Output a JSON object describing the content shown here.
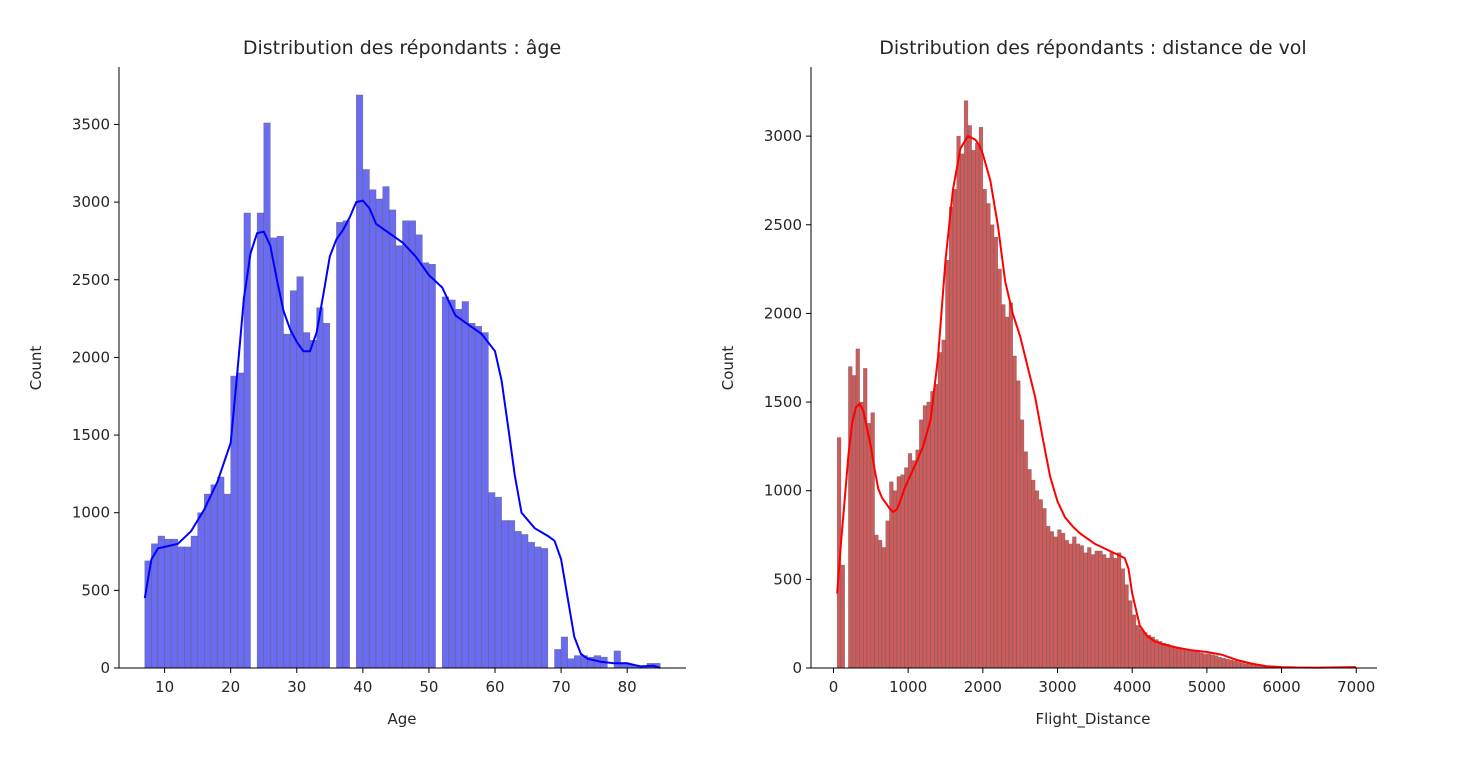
{
  "chart_data": [
    {
      "type": "bar",
      "title": "Distribution des répondants : âge",
      "xlabel": "Age",
      "ylabel": "Count",
      "xlim": [
        3.1,
        88.9
      ],
      "ylim": [
        0,
        3870
      ],
      "xticks": [
        "10",
        "20",
        "30",
        "40",
        "50",
        "60",
        "70",
        "80"
      ],
      "yticks": [
        "0",
        "500",
        "1000",
        "1500",
        "2000",
        "2500",
        "3000",
        "3500"
      ],
      "bar_color": "#6b6bef",
      "kde_color": "#0000ff",
      "grid": false,
      "bins": {
        "start": 7,
        "width": 1,
        "counts": [
          690,
          800,
          850,
          830,
          830,
          780,
          780,
          850,
          1000,
          1120,
          1180,
          1230,
          1120,
          1880,
          1900,
          2930,
          0,
          2930,
          3510,
          2770,
          2780,
          2150,
          2430,
          2520,
          2160,
          2110,
          2320,
          2220,
          0,
          2870,
          2880,
          0,
          3690,
          3210,
          3080,
          3020,
          3100,
          2950,
          2720,
          2880,
          2880,
          2790,
          2610,
          2600,
          0,
          2390,
          2370,
          2310,
          2360,
          2220,
          2200,
          2160,
          1130,
          1100,
          950,
          950,
          880,
          860,
          810,
          780,
          770,
          0,
          120,
          200,
          60,
          80,
          80,
          70,
          80,
          70,
          0,
          110,
          35,
          25,
          10,
          8,
          30,
          30
        ]
      },
      "kde": {
        "x": [
          7,
          8,
          9,
          10,
          12,
          14,
          16,
          18,
          20,
          21,
          22,
          23,
          24,
          25,
          26,
          27,
          28,
          29,
          30,
          31,
          32,
          33,
          34,
          35,
          36,
          37,
          38,
          39,
          40,
          41,
          42,
          44,
          46,
          48,
          50,
          52,
          54,
          56,
          58,
          60,
          61,
          62,
          63,
          64,
          66,
          68,
          69,
          70,
          71,
          72,
          73,
          74,
          76,
          78,
          80,
          82,
          84,
          85
        ],
        "y": [
          450,
          700,
          770,
          780,
          800,
          880,
          1020,
          1200,
          1450,
          1900,
          2380,
          2670,
          2800,
          2810,
          2720,
          2500,
          2300,
          2180,
          2100,
          2040,
          2040,
          2160,
          2400,
          2650,
          2760,
          2820,
          2900,
          3000,
          3010,
          2960,
          2860,
          2800,
          2740,
          2650,
          2530,
          2450,
          2270,
          2210,
          2150,
          2040,
          1850,
          1550,
          1240,
          1000,
          900,
          850,
          820,
          700,
          450,
          200,
          90,
          60,
          40,
          30,
          30,
          10,
          15,
          0
        ]
      }
    },
    {
      "type": "bar",
      "title": "Distribution des répondants : distance de vol",
      "xlabel": "Flight_Distance",
      "ylabel": "Count",
      "xlim": [
        -301,
        7278
      ],
      "ylim": [
        0,
        3390
      ],
      "xticks": [
        "0",
        "1000",
        "2000",
        "3000",
        "4000",
        "5000",
        "6000",
        "7000"
      ],
      "yticks": [
        "0",
        "500",
        "1000",
        "1500",
        "2000",
        "2500",
        "3000"
      ],
      "bar_color": "#cd5c5c",
      "kde_color": "#ff0000",
      "grid": false,
      "bins": {
        "start": 50,
        "width": 50,
        "counts": [
          1300,
          580,
          0,
          1700,
          1650,
          1800,
          1500,
          1690,
          1380,
          1440,
          750,
          720,
          680,
          830,
          1050,
          1000,
          1080,
          1090,
          1130,
          1210,
          1170,
          1230,
          1400,
          1480,
          1500,
          1560,
          1600,
          1780,
          1850,
          2300,
          2600,
          2700,
          3000,
          2900,
          3200,
          3060,
          2920,
          2960,
          3050,
          2700,
          2620,
          2500,
          2430,
          2250,
          2050,
          1980,
          2060,
          1760,
          1620,
          1400,
          1220,
          1120,
          1060,
          1000,
          950,
          900,
          800,
          770,
          740,
          780,
          760,
          720,
          700,
          740,
          700,
          690,
          650,
          680,
          640,
          660,
          660,
          640,
          620,
          650,
          620,
          650,
          560,
          470,
          380,
          300,
          240,
          220,
          200,
          185,
          175,
          160,
          150,
          140,
          135,
          125,
          120,
          115,
          110,
          105,
          100,
          95,
          90,
          85,
          80,
          80,
          75,
          70,
          60,
          55,
          50,
          45,
          40,
          35,
          30,
          25,
          22,
          20,
          18,
          15,
          12,
          10,
          10,
          8,
          8,
          7,
          6,
          6,
          5,
          5,
          5,
          5,
          5,
          4,
          4,
          4,
          4,
          3,
          3,
          3,
          3,
          2
        ]
      },
      "kde": {
        "x": [
          50,
          100,
          150,
          200,
          250,
          300,
          350,
          400,
          450,
          500,
          550,
          600,
          650,
          700,
          750,
          800,
          850,
          900,
          950,
          1000,
          1100,
          1200,
          1300,
          1400,
          1500,
          1600,
          1700,
          1800,
          1900,
          1950,
          2000,
          2100,
          2200,
          2300,
          2400,
          2500,
          2600,
          2700,
          2800,
          2900,
          3000,
          3100,
          3200,
          3300,
          3400,
          3500,
          3600,
          3700,
          3800,
          3900,
          3950,
          4000,
          4100,
          4200,
          4300,
          4400,
          4600,
          4800,
          5000,
          5200,
          5400,
          5600,
          5800,
          6000,
          6200,
          6500,
          7000
        ],
        "y": [
          420,
          700,
          950,
          1200,
          1380,
          1470,
          1490,
          1450,
          1350,
          1250,
          1120,
          1010,
          960,
          930,
          900,
          880,
          895,
          950,
          1010,
          1060,
          1150,
          1250,
          1400,
          1750,
          2300,
          2700,
          2930,
          3000,
          2980,
          2950,
          2900,
          2750,
          2500,
          2180,
          2000,
          1870,
          1700,
          1530,
          1300,
          1080,
          940,
          850,
          800,
          760,
          730,
          700,
          680,
          660,
          640,
          620,
          560,
          420,
          240,
          180,
          150,
          135,
          115,
          100,
          90,
          75,
          45,
          25,
          10,
          5,
          3,
          2,
          5
        ]
      }
    }
  ]
}
